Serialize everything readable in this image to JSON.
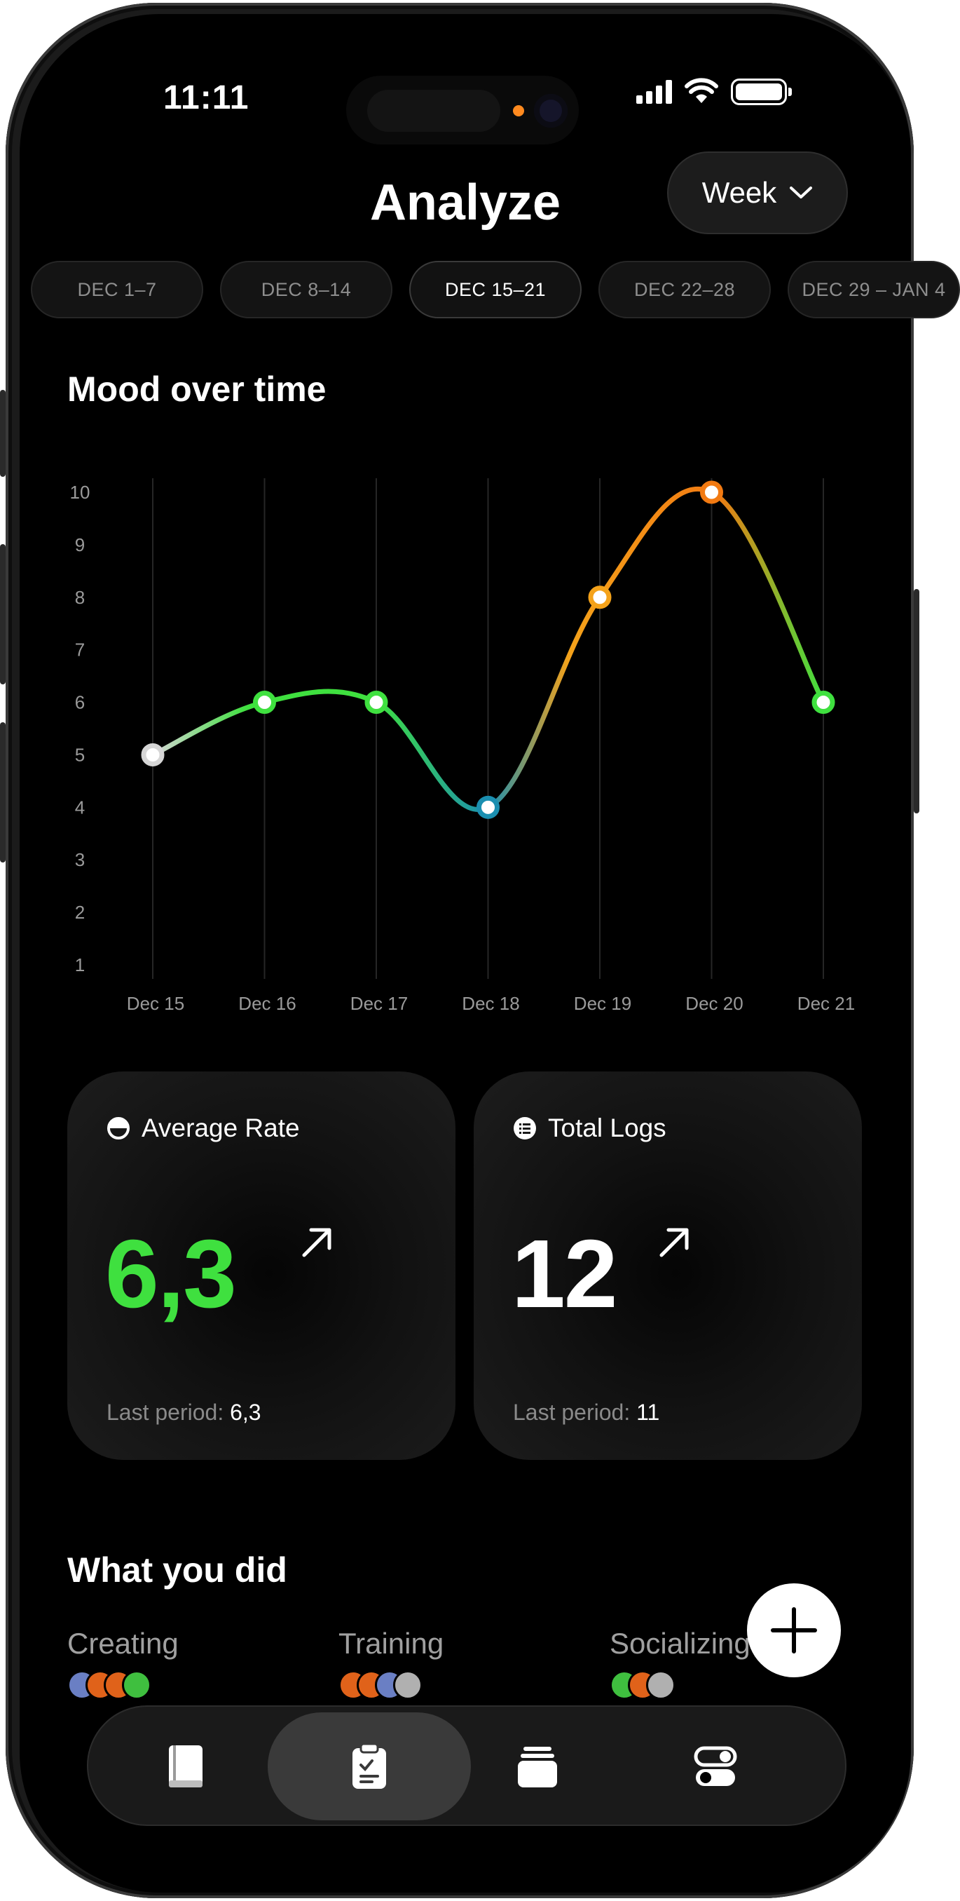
{
  "status": {
    "time": "11:11"
  },
  "header": {
    "title": "Analyze",
    "period_label": "Week"
  },
  "weeks": [
    {
      "label": "DEC 1–7"
    },
    {
      "label": "DEC 8–14"
    },
    {
      "label": "DEC 15–21",
      "active": true
    },
    {
      "label": "DEC 22–28"
    },
    {
      "label": "DEC 29 – JAN 4"
    }
  ],
  "mood": {
    "title": "Mood over time"
  },
  "chart_data": {
    "type": "line",
    "title": "Mood over time",
    "categories": [
      "Dec 15",
      "Dec 16",
      "Dec 17",
      "Dec 18",
      "Dec 19",
      "Dec 20",
      "Dec 21"
    ],
    "series": [
      {
        "values": [
          5,
          6,
          6,
          4,
          8,
          10,
          6
        ]
      }
    ],
    "yticks": [
      1,
      2,
      3,
      4,
      5,
      6,
      7,
      8,
      9,
      10
    ],
    "ylim": [
      1,
      10
    ],
    "grid": "vertical",
    "point_colors": [
      "#d6d6d6",
      "#3fe03f",
      "#3fe03f",
      "#1b8fb0",
      "#f4a21a",
      "#f27a12",
      "#3fe03f"
    ]
  },
  "stats": {
    "average": {
      "label": "Average Rate",
      "value": "6,3",
      "last_label": "Last period:",
      "last_value": "6,3",
      "color": "#3fe03f"
    },
    "total": {
      "label": "Total Logs",
      "value": "12",
      "last_label": "Last period:",
      "last_value": "11",
      "color": "#ffffff"
    }
  },
  "activities": {
    "title": "What you did",
    "items": [
      {
        "label": "Creating",
        "dots": [
          "#6a7fc4",
          "#e0621a",
          "#e0621a",
          "#3fbf3f"
        ]
      },
      {
        "label": "Training",
        "dots": [
          "#e0621a",
          "#e0621a",
          "#6a7fc4",
          "#b0b0b0"
        ]
      },
      {
        "label": "Socializing",
        "dots": [
          "#3fbf3f",
          "#e0621a",
          "#b0b0b0"
        ]
      }
    ]
  },
  "tabs": [
    {
      "icon": "journal-icon"
    },
    {
      "icon": "clipboard-icon",
      "active": true
    },
    {
      "icon": "cards-icon"
    },
    {
      "icon": "toggles-icon"
    }
  ]
}
